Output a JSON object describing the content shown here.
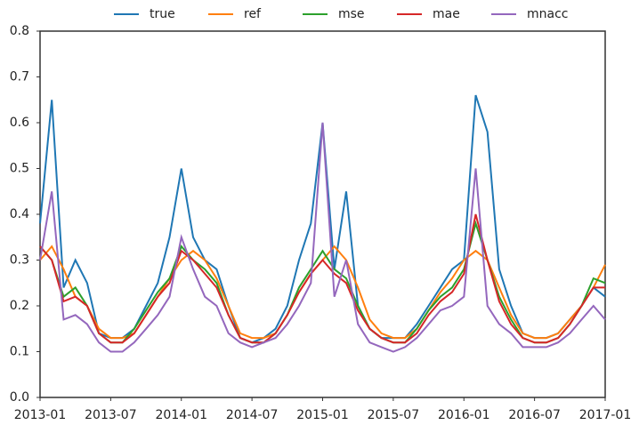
{
  "chart_data": {
    "type": "line",
    "x": [
      "2013-01",
      "2013-02",
      "2013-03",
      "2013-04",
      "2013-05",
      "2013-06",
      "2013-07",
      "2013-08",
      "2013-09",
      "2013-10",
      "2013-11",
      "2013-12",
      "2014-01",
      "2014-02",
      "2014-03",
      "2014-04",
      "2014-05",
      "2014-06",
      "2014-07",
      "2014-08",
      "2014-09",
      "2014-10",
      "2014-11",
      "2014-12",
      "2015-01",
      "2015-02",
      "2015-03",
      "2015-04",
      "2015-05",
      "2015-06",
      "2015-07",
      "2015-08",
      "2015-09",
      "2015-10",
      "2015-11",
      "2015-12",
      "2016-01",
      "2016-02",
      "2016-03",
      "2016-04",
      "2016-05",
      "2016-06",
      "2016-07",
      "2016-08",
      "2016-09",
      "2016-10",
      "2016-11",
      "2016-12",
      "2017-01"
    ],
    "series": [
      {
        "name": "true",
        "color": "#1f77b4",
        "values": [
          0.38,
          0.65,
          0.24,
          0.3,
          0.25,
          0.14,
          0.13,
          0.13,
          0.15,
          0.2,
          0.25,
          0.35,
          0.5,
          0.35,
          0.3,
          0.28,
          0.2,
          0.13,
          0.12,
          0.13,
          0.15,
          0.2,
          0.3,
          0.38,
          0.6,
          0.28,
          0.45,
          0.2,
          0.15,
          0.13,
          0.13,
          0.13,
          0.16,
          0.2,
          0.24,
          0.28,
          0.3,
          0.66,
          0.58,
          0.28,
          0.2,
          0.14,
          0.13,
          0.13,
          0.14,
          0.17,
          0.2,
          0.24,
          0.22
        ]
      },
      {
        "name": "ref",
        "color": "#ff7f0e",
        "values": [
          0.3,
          0.33,
          0.28,
          0.22,
          0.2,
          0.15,
          0.13,
          0.13,
          0.14,
          0.18,
          0.22,
          0.26,
          0.3,
          0.32,
          0.3,
          0.26,
          0.2,
          0.14,
          0.13,
          0.13,
          0.14,
          0.18,
          0.23,
          0.27,
          0.3,
          0.33,
          0.3,
          0.24,
          0.17,
          0.14,
          0.13,
          0.13,
          0.15,
          0.19,
          0.23,
          0.26,
          0.3,
          0.32,
          0.3,
          0.24,
          0.18,
          0.14,
          0.13,
          0.13,
          0.14,
          0.17,
          0.2,
          0.24,
          0.29
        ]
      },
      {
        "name": "mse",
        "color": "#2ca02c",
        "values": [
          0.33,
          0.3,
          0.22,
          0.24,
          0.2,
          0.14,
          0.12,
          0.12,
          0.15,
          0.19,
          0.23,
          0.26,
          0.33,
          0.3,
          0.28,
          0.25,
          0.18,
          0.13,
          0.12,
          0.12,
          0.14,
          0.18,
          0.24,
          0.28,
          0.32,
          0.28,
          0.26,
          0.2,
          0.15,
          0.13,
          0.12,
          0.12,
          0.15,
          0.19,
          0.22,
          0.24,
          0.28,
          0.38,
          0.3,
          0.22,
          0.17,
          0.13,
          0.12,
          0.12,
          0.13,
          0.16,
          0.2,
          0.26,
          0.25
        ]
      },
      {
        "name": "mae",
        "color": "#d62728",
        "values": [
          0.33,
          0.3,
          0.21,
          0.22,
          0.2,
          0.14,
          0.12,
          0.12,
          0.14,
          0.18,
          0.22,
          0.25,
          0.32,
          0.3,
          0.27,
          0.24,
          0.18,
          0.13,
          0.12,
          0.12,
          0.14,
          0.18,
          0.23,
          0.27,
          0.3,
          0.27,
          0.25,
          0.19,
          0.15,
          0.13,
          0.12,
          0.12,
          0.14,
          0.18,
          0.21,
          0.23,
          0.27,
          0.4,
          0.3,
          0.21,
          0.16,
          0.13,
          0.12,
          0.12,
          0.13,
          0.16,
          0.2,
          0.24,
          0.24
        ]
      },
      {
        "name": "mnacc",
        "color": "#9467bd",
        "values": [
          0.3,
          0.45,
          0.17,
          0.18,
          0.16,
          0.12,
          0.1,
          0.1,
          0.12,
          0.15,
          0.18,
          0.22,
          0.35,
          0.28,
          0.22,
          0.2,
          0.14,
          0.12,
          0.11,
          0.12,
          0.13,
          0.16,
          0.2,
          0.25,
          0.6,
          0.22,
          0.3,
          0.16,
          0.12,
          0.11,
          0.1,
          0.11,
          0.13,
          0.16,
          0.19,
          0.2,
          0.22,
          0.5,
          0.2,
          0.16,
          0.14,
          0.11,
          0.11,
          0.11,
          0.12,
          0.14,
          0.17,
          0.2,
          0.17
        ]
      }
    ],
    "xlim": [
      "2013-01",
      "2017-01"
    ],
    "xticks": [
      "2013-01",
      "2013-07",
      "2014-01",
      "2014-07",
      "2015-01",
      "2015-07",
      "2016-01",
      "2016-07",
      "2017-01"
    ],
    "ylim": [
      0,
      0.8
    ],
    "yticks": [
      {
        "value": 0,
        "label": "0.0"
      },
      0.1,
      0.2,
      0.3,
      0.4,
      0.5,
      0.6,
      0.7,
      0.8
    ],
    "legend": "top"
  }
}
